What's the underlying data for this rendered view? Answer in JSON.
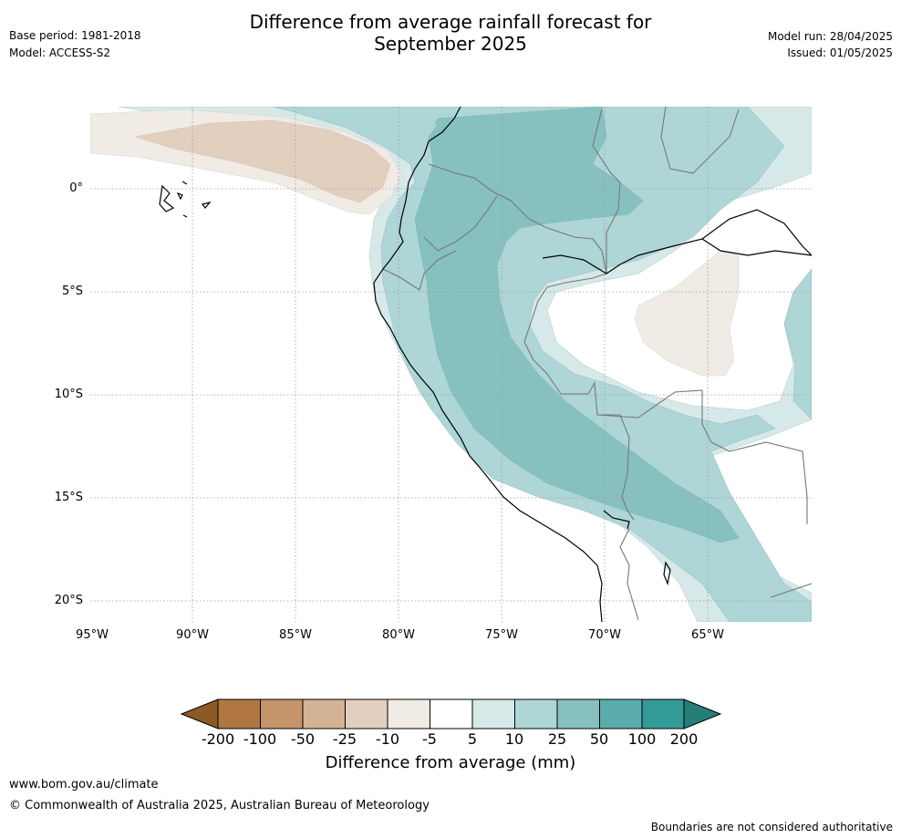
{
  "header": {
    "title_line1": "Difference from average rainfall forecast for",
    "title_line2": "September 2025",
    "base_period": "Base period: 1981-2018",
    "model": "Model: ACCESS-S2",
    "model_run": "Model run: 28/04/2025",
    "issued": "Issued: 01/05/2025"
  },
  "map": {
    "lat_labels": [
      "0°",
      "5°S",
      "10°S",
      "15°S",
      "20°S"
    ],
    "lon_labels": [
      "95°W",
      "90°W",
      "85°W",
      "80°W",
      "75°W",
      "70°W",
      "65°W"
    ],
    "colors": {
      "dry_strong": "#8c5a26",
      "dry_200": "#b07840",
      "dry_100": "#c4956b",
      "dry_50": "#d3b394",
      "dry_25": "#e3cfbd",
      "dry_10": "#f1ebe5",
      "neutral": "#ffffff",
      "wet_5": "#d6e9e8",
      "wet_10": "#aed6d6",
      "wet_25": "#86c1c0",
      "wet_50": "#5aadab",
      "wet_100": "#349a97",
      "wet_200": "#257e7a"
    }
  },
  "colorbar": {
    "ticks": [
      "-200",
      "-100",
      "-50",
      "-25",
      "-10",
      "-5",
      "5",
      "10",
      "25",
      "50",
      "100",
      "200"
    ],
    "title": "Difference from average (mm)"
  },
  "footer": {
    "website": "www.bom.gov.au/climate",
    "copyright": "© Commonwealth of Australia 2025, Australian Bureau of Meteorology",
    "disclaimer": "Boundaries are not considered authoritative"
  }
}
